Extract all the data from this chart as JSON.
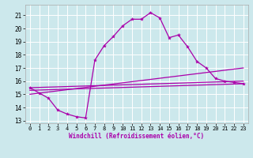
{
  "xlabel": "Windchill (Refroidissement éolien,°C)",
  "xlim": [
    -0.5,
    23.5
  ],
  "ylim": [
    12.8,
    21.8
  ],
  "yticks": [
    13,
    14,
    15,
    16,
    17,
    18,
    19,
    20,
    21
  ],
  "xticks": [
    0,
    1,
    2,
    3,
    4,
    5,
    6,
    7,
    8,
    9,
    10,
    11,
    12,
    13,
    14,
    15,
    16,
    17,
    18,
    19,
    20,
    21,
    22,
    23
  ],
  "bg_color": "#cce8ec",
  "grid_color": "#ffffff",
  "line_color": "#aa00aa",
  "main_line": {
    "x": [
      0,
      1,
      2,
      3,
      4,
      5,
      6,
      7,
      8,
      9,
      10,
      11,
      12,
      13,
      14,
      15,
      16,
      17,
      18,
      19,
      20,
      21,
      22,
      23
    ],
    "y": [
      15.5,
      15.1,
      14.7,
      13.8,
      13.5,
      13.3,
      13.2,
      17.6,
      18.7,
      19.4,
      20.2,
      20.7,
      20.7,
      21.2,
      20.8,
      19.3,
      19.5,
      18.6,
      17.5,
      17.0,
      16.2,
      16.0,
      15.9,
      15.8
    ]
  },
  "straight_lines": [
    {
      "x": [
        0,
        23
      ],
      "y": [
        15.5,
        16.0
      ]
    },
    {
      "x": [
        0,
        23
      ],
      "y": [
        15.3,
        15.8
      ]
    },
    {
      "x": [
        0,
        23
      ],
      "y": [
        15.0,
        17.0
      ]
    }
  ],
  "marker": "p",
  "markersize": 3,
  "linewidth": 0.9,
  "tick_fontsize": 5,
  "xlabel_fontsize": 5.5
}
